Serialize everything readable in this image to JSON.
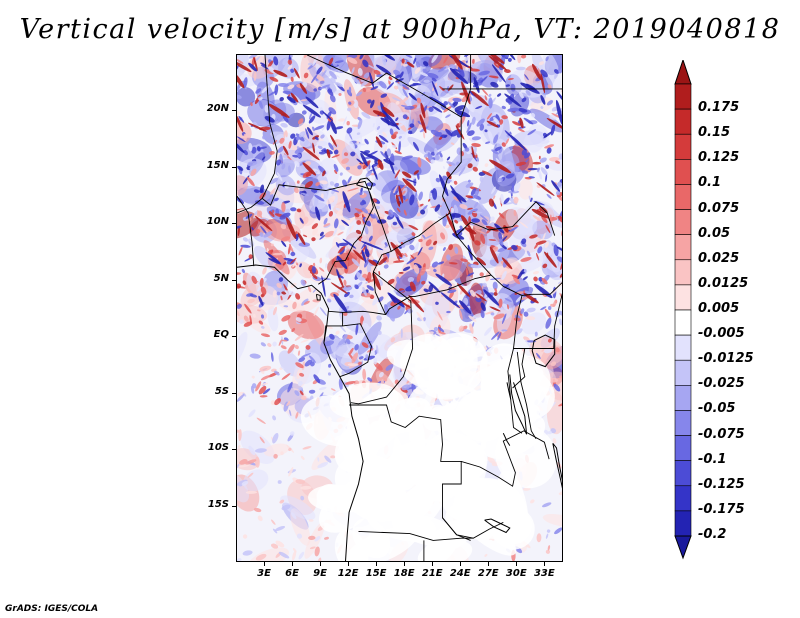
{
  "title": "Vertical velocity [m/s] at 900hPa, VT: 2019040818",
  "credit": "GrADS: IGES/COLA",
  "map": {
    "lon_range": [
      0,
      35
    ],
    "lat_range": [
      -20,
      25
    ],
    "lat_ticks": [
      {
        "label": "20N",
        "value": 20
      },
      {
        "label": "15N",
        "value": 15
      },
      {
        "label": "10N",
        "value": 10
      },
      {
        "label": "5N",
        "value": 5
      },
      {
        "label": "EQ",
        "value": 0
      },
      {
        "label": "5S",
        "value": -5
      },
      {
        "label": "10S",
        "value": -10
      },
      {
        "label": "15S",
        "value": -15
      }
    ],
    "lon_ticks": [
      {
        "label": "3E",
        "value": 3
      },
      {
        "label": "6E",
        "value": 6
      },
      {
        "label": "9E",
        "value": 9
      },
      {
        "label": "12E",
        "value": 12
      },
      {
        "label": "15E",
        "value": 15
      },
      {
        "label": "18E",
        "value": 18
      },
      {
        "label": "21E",
        "value": 21
      },
      {
        "label": "24E",
        "value": 24
      },
      {
        "label": "27E",
        "value": 27
      },
      {
        "label": "30E",
        "value": 30
      },
      {
        "label": "33E",
        "value": 33
      }
    ]
  },
  "colorbar": {
    "levels": [
      {
        "label": "0.175",
        "color": "#b01d1d"
      },
      {
        "label": "0.15",
        "color": "#c52a2a"
      },
      {
        "label": "0.125",
        "color": "#d43b3b"
      },
      {
        "label": "0.1",
        "color": "#e05050"
      },
      {
        "label": "0.075",
        "color": "#e96868"
      },
      {
        "label": "0.05",
        "color": "#f08484"
      },
      {
        "label": "0.025",
        "color": "#f6a4a4"
      },
      {
        "label": "0.0125",
        "color": "#fac4c4"
      },
      {
        "label": "0.005",
        "color": "#fde2e2"
      },
      {
        "label": "-0.005",
        "color": "#ffffff"
      },
      {
        "label": "-0.0125",
        "color": "#e2e2fd"
      },
      {
        "label": "-0.025",
        "color": "#c4c4f8"
      },
      {
        "label": "-0.05",
        "color": "#a6a6f2"
      },
      {
        "label": "-0.075",
        "color": "#8686eb"
      },
      {
        "label": "-0.1",
        "color": "#6868e2"
      },
      {
        "label": "-0.125",
        "color": "#4c4cd6"
      },
      {
        "label": "-0.175",
        "color": "#3434c8"
      },
      {
        "label": "-0.2",
        "color": "#2323b3"
      }
    ],
    "top_arrow_color": "#9b1515",
    "bottom_arrow_color": "#1a1a9c"
  }
}
